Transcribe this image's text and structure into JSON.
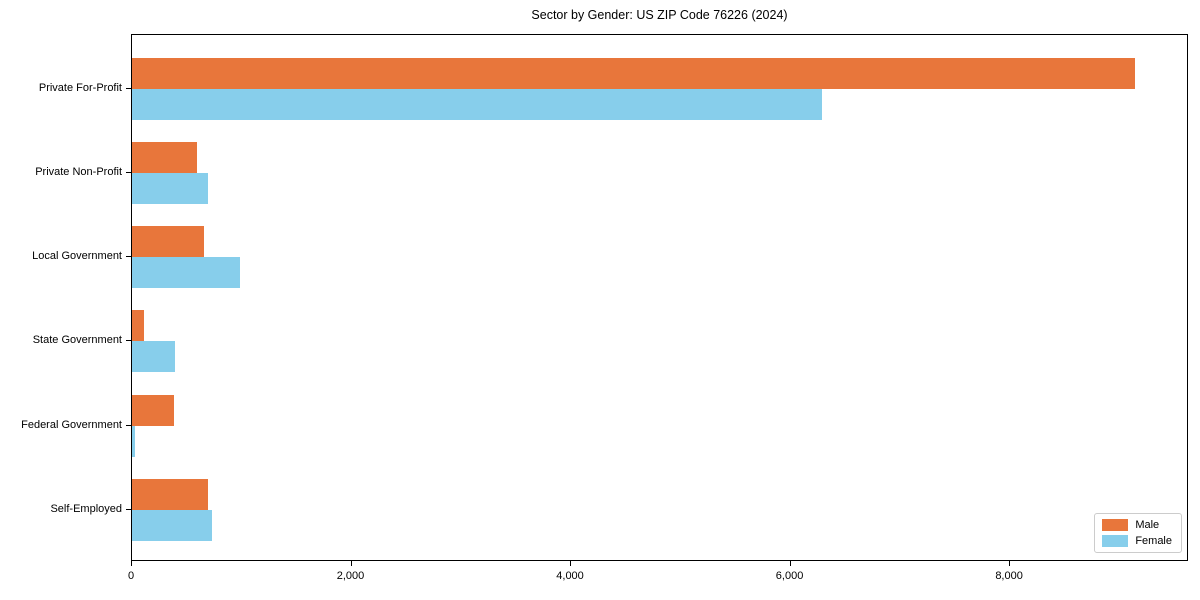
{
  "chart_data": {
    "type": "bar",
    "orientation": "horizontal",
    "title": "Sector by Gender: US ZIP Code 76226 (2024)",
    "categories": [
      "Private For-Profit",
      "Private Non-Profit",
      "Local Government",
      "State Government",
      "Federal Government",
      "Self-Employed"
    ],
    "series": [
      {
        "name": "Male",
        "color": "#e8763b",
        "values": [
          9140,
          590,
          660,
          110,
          385,
          690
        ]
      },
      {
        "name": "Female",
        "color": "#87ceeb",
        "values": [
          6290,
          690,
          980,
          395,
          25,
          730
        ]
      }
    ],
    "xlabel": "",
    "ylabel": "",
    "xlim": [
      0,
      9630
    ],
    "xticks": [
      {
        "value": 0,
        "label": "0"
      },
      {
        "value": 2000,
        "label": "2,000"
      },
      {
        "value": 4000,
        "label": "4,000"
      },
      {
        "value": 6000,
        "label": "6,000"
      },
      {
        "value": 8000,
        "label": "8,000"
      }
    ],
    "grid": false,
    "legend": {
      "position": "lower right"
    }
  }
}
